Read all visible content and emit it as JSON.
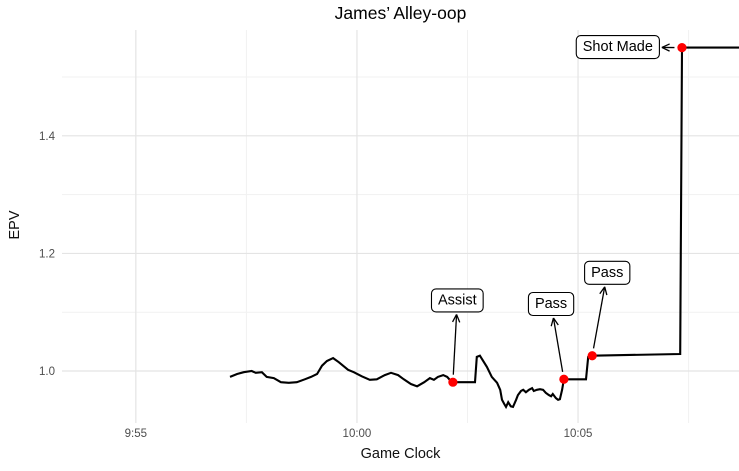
{
  "chart_data": {
    "type": "line",
    "title": "James’ Alley-oop",
    "xlabel": "Game Clock",
    "ylabel": "EPV",
    "x_domain": [
      593.33,
      608.64
    ],
    "y_domain": [
      0.915,
      1.58
    ],
    "x_ticks": [
      {
        "value": 595,
        "label": "9:55"
      },
      {
        "value": 600,
        "label": "10:00"
      },
      {
        "value": 605,
        "label": "10:05"
      }
    ],
    "x_minor_ticks": [
      597.5,
      602.5,
      607.5
    ],
    "y_ticks": [
      {
        "value": 1.0,
        "label": "1.0"
      },
      {
        "value": 1.2,
        "label": "1.2"
      },
      {
        "value": 1.4,
        "label": "1.4"
      }
    ],
    "y_minor_ticks": [
      1.1,
      1.3,
      1.5
    ],
    "grid": {
      "major_color": "#E4E4E4",
      "minor_color": "#F1F1F1",
      "background": "#FFFFFF"
    },
    "line": {
      "color": "#000000",
      "width": 2.1
    },
    "point_color": "#FF0000",
    "text_color": "#4D4D4D",
    "series": [
      {
        "name": "EPV",
        "points": [
          [
            597.13,
            0.99
          ],
          [
            597.29,
            0.995
          ],
          [
            597.44,
            0.998
          ],
          [
            597.62,
            1.0
          ],
          [
            597.71,
            0.997
          ],
          [
            597.85,
            0.998
          ],
          [
            597.96,
            0.99
          ],
          [
            598.12,
            0.988
          ],
          [
            598.28,
            0.981
          ],
          [
            598.46,
            0.98
          ],
          [
            598.64,
            0.981
          ],
          [
            598.82,
            0.986
          ],
          [
            598.96,
            0.99
          ],
          [
            599.1,
            0.995
          ],
          [
            599.21,
            1.009
          ],
          [
            599.32,
            1.017
          ],
          [
            599.46,
            1.022
          ],
          [
            599.59,
            1.015
          ],
          [
            599.8,
            1.002
          ],
          [
            599.93,
            0.998
          ],
          [
            600.11,
            0.991
          ],
          [
            600.29,
            0.985
          ],
          [
            600.45,
            0.986
          ],
          [
            600.63,
            0.993
          ],
          [
            600.77,
            0.997
          ],
          [
            600.93,
            0.993
          ],
          [
            601.06,
            0.986
          ],
          [
            601.22,
            0.978
          ],
          [
            601.36,
            0.974
          ],
          [
            601.52,
            0.981
          ],
          [
            601.65,
            0.988
          ],
          [
            601.74,
            0.985
          ],
          [
            601.83,
            0.99
          ],
          [
            601.95,
            0.993
          ],
          [
            602.04,
            0.99
          ],
          [
            602.1,
            0.985
          ],
          [
            602.17,
            0.981
          ],
          [
            602.67,
            0.981
          ],
          [
            602.71,
            1.024
          ],
          [
            602.78,
            1.026
          ],
          [
            602.94,
            1.007
          ],
          [
            603.05,
            0.99
          ],
          [
            603.17,
            0.98
          ],
          [
            603.24,
            0.968
          ],
          [
            603.28,
            0.951
          ],
          [
            603.33,
            0.944
          ],
          [
            603.37,
            0.939
          ],
          [
            603.42,
            0.947
          ],
          [
            603.48,
            0.94
          ],
          [
            603.53,
            0.939
          ],
          [
            603.6,
            0.951
          ],
          [
            603.64,
            0.959
          ],
          [
            603.71,
            0.966
          ],
          [
            603.76,
            0.968
          ],
          [
            603.82,
            0.964
          ],
          [
            603.89,
            0.968
          ],
          [
            603.96,
            0.971
          ],
          [
            604.0,
            0.966
          ],
          [
            604.07,
            0.968
          ],
          [
            604.14,
            0.969
          ],
          [
            604.21,
            0.968
          ],
          [
            604.27,
            0.963
          ],
          [
            604.34,
            0.959
          ],
          [
            604.39,
            0.957
          ],
          [
            604.43,
            0.961
          ],
          [
            604.5,
            0.954
          ],
          [
            604.55,
            0.951
          ],
          [
            604.59,
            0.952
          ],
          [
            604.64,
            0.968
          ],
          [
            604.68,
            0.986
          ],
          [
            605.18,
            0.986
          ],
          [
            605.23,
            1.024
          ],
          [
            605.32,
            1.026
          ],
          [
            607.31,
            1.029
          ],
          [
            607.35,
            1.55
          ],
          [
            608.64,
            1.55
          ]
        ]
      }
    ],
    "events": [
      {
        "label": "Assist",
        "x": 602.17,
        "y": 0.981,
        "label_x": 602.27,
        "label_y": 1.12
      },
      {
        "label": "Pass",
        "x": 604.68,
        "y": 0.986,
        "label_x": 604.39,
        "label_y": 1.114
      },
      {
        "label": "Pass",
        "x": 605.32,
        "y": 1.026,
        "label_x": 605.66,
        "label_y": 1.167
      },
      {
        "label": "Shot Made",
        "x": 607.35,
        "y": 1.55,
        "label_x": 605.9,
        "label_y": 1.551
      }
    ]
  }
}
